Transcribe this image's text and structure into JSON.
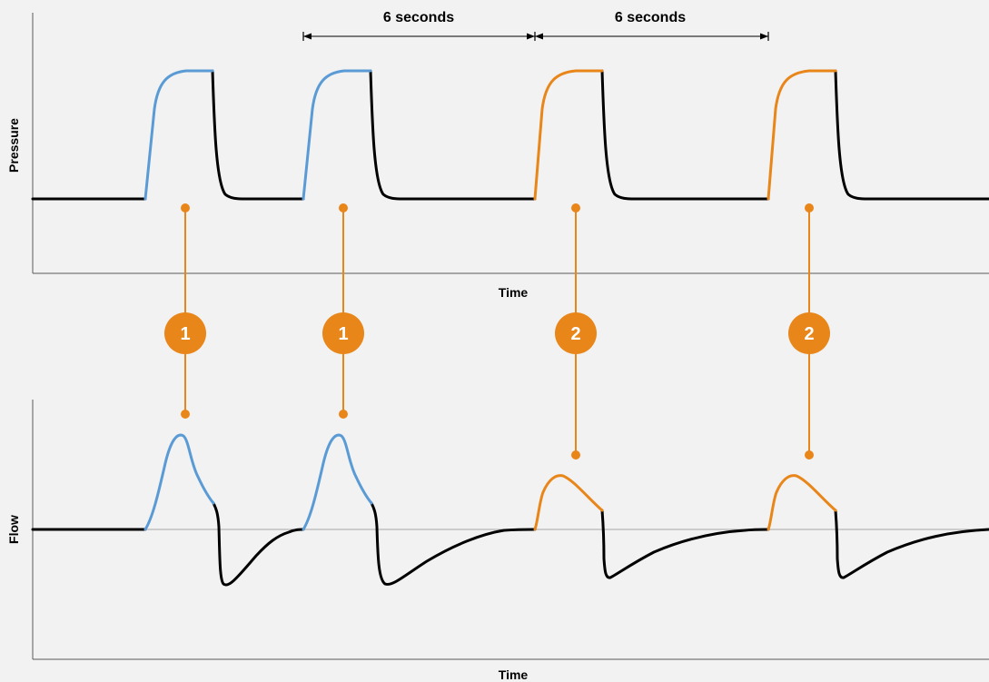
{
  "pressure_panel": {
    "ylabel": "Pressure",
    "xlabel": "Time",
    "interval_labels": [
      "6 seconds",
      "6 seconds"
    ]
  },
  "flow_panel": {
    "ylabel": "Flow",
    "xlabel": "Time"
  },
  "breath_markers": [
    {
      "label": "1",
      "type": "blue"
    },
    {
      "label": "1",
      "type": "blue"
    },
    {
      "label": "2",
      "type": "orange"
    },
    {
      "label": "2",
      "type": "orange"
    }
  ],
  "colors": {
    "background": "#f2f2f2",
    "trace": "#000000",
    "breath_type_1": "#5b9bd5",
    "breath_type_2": "#e8861a",
    "marker": "#e8861a",
    "baseline": "#a6a6a6"
  }
}
